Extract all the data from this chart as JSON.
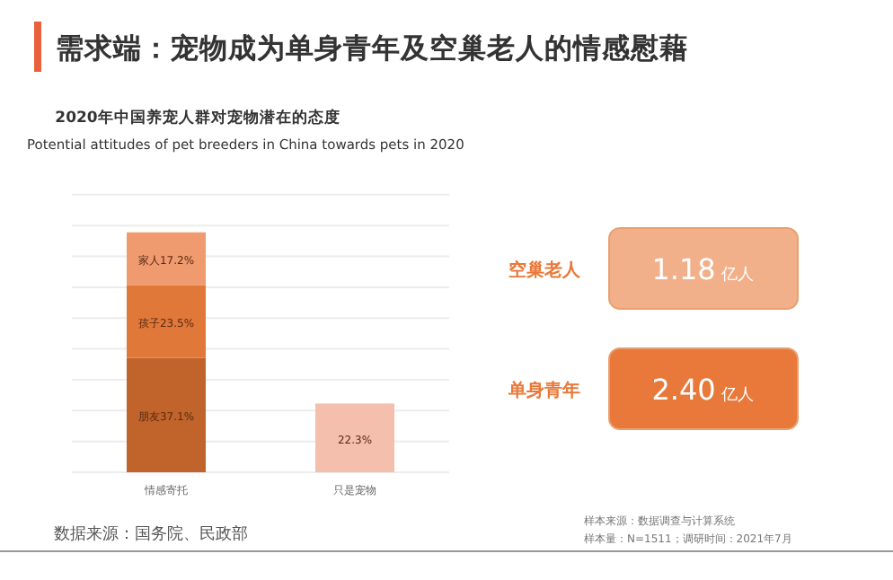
{
  "chart_data": [
    {
      "type": "bar",
      "stacked": true,
      "title": "2020年中国养宠人群对宠物潜在的态度",
      "subtitle": "Potential attitudes of pet breeders in China towards pets in 2020",
      "annotations": [
        "需求端：宠物成为单身青年及空巢老人的情感慰藉",
        "数据来源：国务院、民政部",
        "样本来源：数据调查与计算系统",
        "样本量：N=1511；调研时间：2021年7月"
      ],
      "categories": [
        "情感寄托",
        "只是宠物"
      ],
      "series": [
        {
          "colors": [
            "#c0642c",
            "#f5bfae"
          ],
          "values": [
            37.1,
            22.3
          ],
          "value_labels": [
            "朋友37.1%",
            "22.3%"
          ]
        },
        {
          "colors": [
            "#e0783a",
            null
          ],
          "values": [
            23.5,
            null
          ],
          "value_labels": [
            "孩子23.5%",
            null
          ]
        },
        {
          "colors": [
            "#f09a70",
            null
          ],
          "values": [
            17.2,
            null
          ],
          "value_labels": [
            "家人17.2%",
            null
          ]
        }
      ],
      "ylim": [
        0,
        92
      ],
      "yticks": [
        {
          "value": 0,
          "label": null
        },
        {
          "value": 10,
          "label": null
        },
        {
          "value": 20,
          "label": null
        },
        {
          "value": 30,
          "label": null
        },
        {
          "value": 40,
          "label": null
        },
        {
          "value": 50,
          "label": null
        },
        {
          "value": 60,
          "label": null
        },
        {
          "value": 70,
          "label": null
        },
        {
          "value": 80,
          "label": null
        },
        {
          "value": 90,
          "label": null
        }
      ],
      "tick_labels": "x",
      "grid": "y"
    },
    {
      "type": "other",
      "categories": [
        "空巢老人",
        "单身青年"
      ],
      "value_labels": [
        "1.18",
        "2.40"
      ],
      "ylabel": "亿人",
      "colors": [
        "#f2b08a",
        "#e8793a"
      ]
    }
  ]
}
